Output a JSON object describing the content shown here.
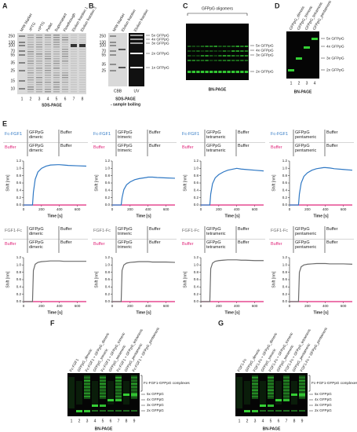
{
  "panels": {
    "A": {
      "label": "A",
      "lanes": [
        "M/W Marker",
        "-IPTG",
        "+IPTG",
        "Pellet",
        "Supernatant",
        "Flowthrough",
        "Elution fraction 1",
        "Elution fraction 3"
      ],
      "lane_numbers": [
        1,
        2,
        3,
        4,
        5,
        6,
        7,
        8
      ],
      "markers": [
        250,
        130,
        100,
        70,
        55,
        35,
        25,
        15,
        10
      ],
      "caption": "SDS-PAGE"
    },
    "B": {
      "label": "B",
      "lanes": [
        "M/W Marker",
        "Elution fraction",
        "Elution fraction"
      ],
      "markers": [
        250,
        130,
        100,
        70,
        55,
        35,
        25
      ],
      "bands": [
        "5x GFPpG",
        "4x GFPpG",
        "3x GFPpG",
        "2x GFPpG",
        "1x GFPpG"
      ],
      "stains": [
        "CBB",
        "UV"
      ],
      "caption": [
        "SDS-PAGE",
        "- sample boiling"
      ]
    },
    "C": {
      "label": "C",
      "group": "GFPpG oligomers",
      "bands": [
        "5x GFPpG",
        "4x GFPpG",
        "3x GFPpG",
        "2x GFPpG"
      ],
      "caption": "BN-PAGE"
    },
    "D": {
      "label": "D",
      "lanes": [
        "GFPpG_dimeric",
        "GFPpG_trimeric",
        "GFPpG_tetrameric",
        "GFPpG_pentameric"
      ],
      "lane_numbers": [
        1,
        2,
        3,
        4
      ],
      "bands": [
        "5x GFPpG",
        "4x GFPpG",
        "3x GFPpG",
        "2x GFPpG"
      ],
      "caption": "BN-PAGE"
    },
    "E": {
      "label": "E"
    },
    "F": {
      "label": "F",
      "lanes": [
        "Fc-FGF1",
        "GFPpG_dimeric",
        "Fc-FGF1 + GFPpG_dimeric",
        "GFPpG_trimeric",
        "Fc-FGF1 + GFPpG_trimeric",
        "GFPpG_tetrameric",
        "Fc-FGF1 + GFPpG_tetrameric",
        "GFPpG_pentameric",
        "Fc-FGF1 + GFPpG_pentameric"
      ],
      "lane_numbers": [
        1,
        2,
        3,
        4,
        5,
        6,
        7,
        8,
        9
      ],
      "bands": [
        "Fc-FGF1-GFPpG complexes",
        "5x GFPpG",
        "4x GFPpG",
        "3x GFPpG",
        "2x GFPpG"
      ],
      "caption": "BN-PAGE"
    },
    "G": {
      "label": "G",
      "lanes": [
        "FGF1-Fc",
        "GFPpG_dimeric",
        "FGF1-Fc + GFPpG_dimeric",
        "GFPpG_trimeric",
        "FGF1-Fc + GFPpG_trimeric",
        "GFPpG_tetrameric",
        "FGF1-Fc + GFPpG_tetrameric",
        "GFPpG_pentameric",
        "FGF1-Fc + GFPpG_pentameric"
      ],
      "lane_numbers": [
        1,
        2,
        3,
        4,
        5,
        6,
        7,
        8,
        9
      ],
      "bands": [
        "Fc-FGF1-GFPpG complexes",
        "5x GFPpG",
        "4x GFPpG",
        "3x GFPpG",
        "2x GFPpG"
      ],
      "caption": "BN-PAGE"
    }
  },
  "chart_data": [
    {
      "type": "line",
      "y_label": "Shift [nm]",
      "x_label": "Time [s]",
      "xlim": [
        0,
        700
      ],
      "xticks": [
        0,
        200,
        400,
        600
      ],
      "ylim": [
        0,
        1.2
      ],
      "yticks": [
        {
          "value": 0,
          "label": "0.0"
        },
        0.2,
        0.4,
        0.6,
        0.8,
        {
          "value": 1,
          "label": "1.0"
        },
        1.2
      ],
      "phases": [
        [
          "GFPpG dimeric",
          "Buffer"
        ],
        [
          "GFPpG dimeric",
          "Buffer"
        ]
      ],
      "x": [
        0,
        100,
        110,
        130,
        160,
        200,
        250,
        300,
        380,
        400,
        450,
        500,
        600,
        700
      ],
      "series": [
        {
          "name": "Fc-FGF1",
          "color": "#2f78c4",
          "values": [
            0,
            0,
            0.35,
            0.7,
            0.9,
            1.0,
            1.06,
            1.09,
            1.1,
            1.1,
            1.09,
            1.08,
            1.07,
            1.06
          ]
        },
        {
          "name": "Buffer",
          "color": "#e0267a",
          "values": [
            0,
            0,
            0,
            0,
            0,
            0,
            0,
            0,
            0,
            0,
            0,
            0,
            0,
            0
          ]
        }
      ]
    },
    {
      "type": "line",
      "y_label": "Shift [nm]",
      "x_label": "Time [s]",
      "xlim": [
        0,
        700
      ],
      "xticks": [
        0,
        200,
        400,
        600
      ],
      "ylim": [
        0,
        1.2
      ],
      "yticks": [
        {
          "value": 0,
          "label": "0.0"
        },
        0.2,
        0.4,
        0.6,
        0.8,
        {
          "value": 1,
          "label": "1.0"
        },
        1.2
      ],
      "phases": [
        [
          "GFPpG trimeric",
          "Buffer"
        ],
        [
          "GFPpG trimeric",
          "Buffer"
        ]
      ],
      "x": [
        0,
        100,
        110,
        130,
        160,
        200,
        250,
        300,
        380,
        400,
        450,
        500,
        600,
        700
      ],
      "series": [
        {
          "name": "Fc-FGF1",
          "color": "#2f78c4",
          "values": [
            0,
            0,
            0.2,
            0.42,
            0.55,
            0.63,
            0.69,
            0.72,
            0.75,
            0.76,
            0.76,
            0.75,
            0.74,
            0.73
          ]
        },
        {
          "name": "Buffer",
          "color": "#e0267a",
          "values": [
            0,
            0,
            0,
            0,
            0,
            0,
            0,
            0,
            0,
            0,
            0,
            0,
            0,
            0
          ]
        }
      ]
    },
    {
      "type": "line",
      "y_label": "Shift [nm]",
      "x_label": "Time [s]",
      "xlim": [
        0,
        700
      ],
      "xticks": [
        0,
        200,
        400,
        600
      ],
      "ylim": [
        0,
        1.2
      ],
      "yticks": [
        {
          "value": 0,
          "label": "0.0"
        },
        0.2,
        0.4,
        0.6,
        0.8,
        {
          "value": 1,
          "label": "1.0"
        },
        1.2
      ],
      "phases": [
        [
          "GFPpG tetrameric",
          "Buffer"
        ],
        [
          "GFPpG tetrameric",
          "Buffer"
        ]
      ],
      "x": [
        0,
        100,
        110,
        130,
        160,
        200,
        250,
        300,
        380,
        400,
        450,
        500,
        600,
        700
      ],
      "series": [
        {
          "name": "Fc-FGF1",
          "color": "#2f78c4",
          "values": [
            0,
            0,
            0.3,
            0.58,
            0.74,
            0.83,
            0.9,
            0.95,
            0.99,
            1.0,
            0.98,
            0.97,
            0.95,
            0.93
          ]
        },
        {
          "name": "Buffer",
          "color": "#e0267a",
          "values": [
            0,
            0,
            0,
            0,
            0,
            0,
            0,
            0,
            0,
            0,
            0,
            0,
            0,
            0
          ]
        }
      ]
    },
    {
      "type": "line",
      "y_label": "Shift [nm]",
      "x_label": "Time [s]",
      "xlim": [
        0,
        700
      ],
      "xticks": [
        0,
        200,
        400,
        600
      ],
      "ylim": [
        0,
        1.2
      ],
      "yticks": [
        {
          "value": 0,
          "label": "0.0"
        },
        0.2,
        0.4,
        0.6,
        0.8,
        {
          "value": 1,
          "label": "1.0"
        },
        1.2
      ],
      "phases": [
        [
          "GFPpG pentameric",
          "Buffer"
        ],
        [
          "GFPpG pentameric",
          "Buffer"
        ]
      ],
      "x": [
        0,
        100,
        110,
        130,
        160,
        200,
        250,
        300,
        380,
        400,
        450,
        500,
        600,
        700
      ],
      "series": [
        {
          "name": "Fc-FGF1",
          "color": "#2f78c4",
          "values": [
            0,
            0,
            0.3,
            0.6,
            0.78,
            0.88,
            0.95,
            0.99,
            1.02,
            1.02,
            1.01,
            0.99,
            0.97,
            0.95
          ]
        },
        {
          "name": "Buffer",
          "color": "#e0267a",
          "values": [
            0,
            0,
            0,
            0,
            0,
            0,
            0,
            0,
            0,
            0,
            0,
            0,
            0,
            0
          ]
        }
      ]
    },
    {
      "type": "line",
      "y_label": "Shift [nm]",
      "x_label": "Time [s]",
      "xlim": [
        0,
        700
      ],
      "xticks": [
        0,
        200,
        400,
        600
      ],
      "ylim": [
        0,
        1.2
      ],
      "yticks": [
        {
          "value": 0,
          "label": "0.0"
        },
        0.2,
        0.4,
        0.6,
        0.8,
        {
          "value": 1,
          "label": "1.0"
        },
        1.2
      ],
      "phases": [
        [
          "GFPpG dimeric",
          "Buffer"
        ],
        [
          "GFPpG dimeric",
          "Buffer"
        ]
      ],
      "x": [
        0,
        100,
        110,
        130,
        160,
        200,
        250,
        300,
        380,
        400,
        450,
        500,
        600,
        700
      ],
      "series": [
        {
          "name": "FGF1-Fc",
          "color": "#6b6b6b",
          "values": [
            0,
            0,
            0.85,
            1.02,
            1.07,
            1.09,
            1.1,
            1.11,
            1.11,
            1.11,
            1.1,
            1.1,
            1.1,
            1.1
          ]
        },
        {
          "name": "Buffer",
          "color": "#e0267a",
          "values": [
            0,
            0,
            0,
            0,
            0,
            0,
            0,
            0,
            0,
            0,
            0,
            0,
            0,
            0
          ]
        }
      ]
    },
    {
      "type": "line",
      "y_label": "Shift [nm]",
      "x_label": "Time [s]",
      "xlim": [
        0,
        700
      ],
      "xticks": [
        0,
        200,
        400,
        600
      ],
      "ylim": [
        0,
        1.2
      ],
      "yticks": [
        {
          "value": 0,
          "label": "0.0"
        },
        0.2,
        0.4,
        0.6,
        0.8,
        {
          "value": 1,
          "label": "1.0"
        },
        1.2
      ],
      "phases": [
        [
          "GFPpG trimeric",
          "Buffer"
        ],
        [
          "GFPpG trimeric",
          "Buffer"
        ]
      ],
      "x": [
        0,
        100,
        110,
        130,
        160,
        200,
        250,
        300,
        380,
        400,
        450,
        500,
        600,
        700
      ],
      "series": [
        {
          "name": "FGF1-Fc",
          "color": "#6b6b6b",
          "values": [
            0,
            0,
            0.85,
            1.0,
            1.05,
            1.07,
            1.08,
            1.09,
            1.09,
            1.09,
            1.08,
            1.08,
            1.08,
            1.07
          ]
        },
        {
          "name": "Buffer",
          "color": "#e0267a",
          "values": [
            0,
            0,
            0,
            0,
            0,
            0,
            0,
            0,
            0,
            0,
            0,
            0,
            0,
            0
          ]
        }
      ]
    },
    {
      "type": "line",
      "y_label": "Shift [nm]",
      "x_label": "Time [s]",
      "xlim": [
        0,
        700
      ],
      "xticks": [
        0,
        200,
        400,
        600
      ],
      "ylim": [
        0,
        1.2
      ],
      "yticks": [
        {
          "value": 0,
          "label": "0.0"
        },
        0.2,
        0.4,
        0.6,
        0.8,
        {
          "value": 1,
          "label": "1.0"
        },
        1.2
      ],
      "phases": [
        [
          "GFPpG tetrameric",
          "Buffer"
        ],
        [
          "GFPpG tetrameric",
          "Buffer"
        ]
      ],
      "x": [
        0,
        100,
        110,
        130,
        160,
        200,
        250,
        300,
        380,
        400,
        450,
        500,
        600,
        700
      ],
      "series": [
        {
          "name": "FGF1-Fc",
          "color": "#6b6b6b",
          "values": [
            0,
            0,
            0.9,
            1.05,
            1.1,
            1.12,
            1.13,
            1.14,
            1.14,
            1.14,
            1.13,
            1.13,
            1.12,
            1.12
          ]
        },
        {
          "name": "Buffer",
          "color": "#e0267a",
          "values": [
            0,
            0,
            0,
            0,
            0,
            0,
            0,
            0,
            0,
            0,
            0,
            0,
            0,
            0
          ]
        }
      ]
    },
    {
      "type": "line",
      "y_label": "Shift [nm]",
      "x_label": "Time [s]",
      "xlim": [
        0,
        700
      ],
      "xticks": [
        0,
        200,
        400,
        600
      ],
      "ylim": [
        0,
        1.2
      ],
      "yticks": [
        {
          "value": 0,
          "label": "0.0"
        },
        0.2,
        0.4,
        0.6,
        0.8,
        {
          "value": 1,
          "label": "1.0"
        },
        1.2
      ],
      "phases": [
        [
          "GFPpG pentameric",
          "Buffer"
        ],
        [
          "GFPpG pentameric",
          "Buffer"
        ]
      ],
      "x": [
        0,
        100,
        110,
        130,
        160,
        200,
        250,
        300,
        380,
        400,
        450,
        500,
        600,
        700
      ],
      "series": [
        {
          "name": "FGF1-Fc",
          "color": "#6b6b6b",
          "values": [
            0,
            0,
            0.8,
            0.95,
            1.0,
            1.02,
            1.03,
            1.04,
            1.04,
            1.04,
            1.03,
            1.03,
            1.03,
            1.02
          ]
        },
        {
          "name": "Buffer",
          "color": "#e0267a",
          "values": [
            0,
            0,
            0,
            0,
            0,
            0,
            0,
            0,
            0,
            0,
            0,
            0,
            0,
            0
          ]
        }
      ]
    }
  ]
}
